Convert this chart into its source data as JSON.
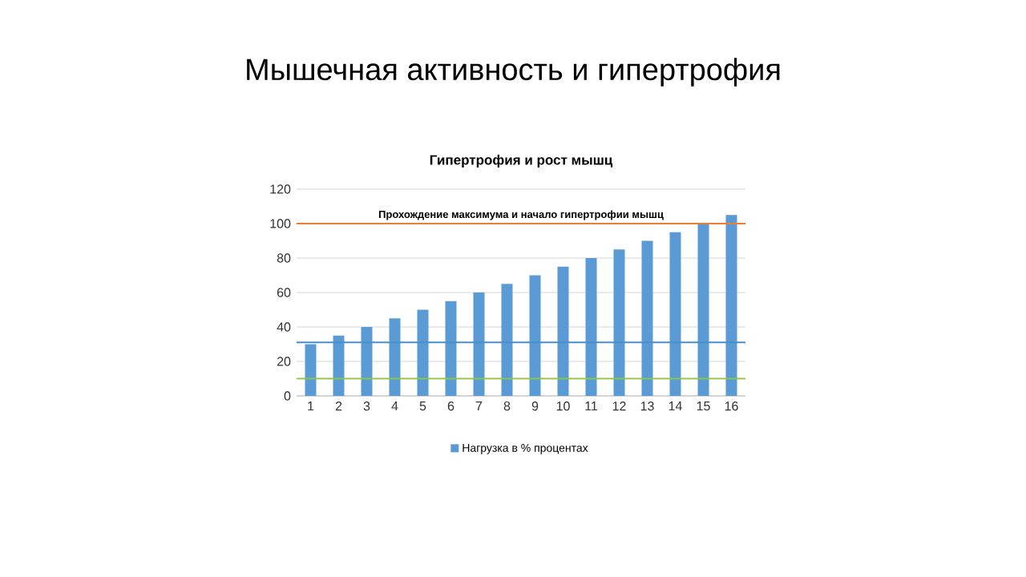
{
  "chart_data": {
    "type": "bar",
    "title": "Мышечная активность и гипертрофия",
    "subtitle": "Гипертрофия и рост мышц",
    "categories": [
      "1",
      "2",
      "3",
      "4",
      "5",
      "6",
      "7",
      "8",
      "9",
      "10",
      "11",
      "12",
      "13",
      "14",
      "15",
      "16"
    ],
    "series": [
      {
        "name": "Нагрузка в % процентах",
        "color": "#5b9bd5",
        "values": [
          30,
          35,
          40,
          45,
          50,
          55,
          60,
          65,
          70,
          75,
          80,
          85,
          90,
          95,
          100,
          105
        ]
      }
    ],
    "ylim": [
      0,
      120
    ],
    "yticks": [
      0,
      20,
      40,
      60,
      80,
      100,
      120
    ],
    "grid": "y",
    "legend": "bottom",
    "ref_lines": [
      {
        "axis": "y",
        "value": 100,
        "label": "Прохождение максимума и начало гипертрофии мышц",
        "color": "#ed7d31"
      },
      {
        "axis": "y",
        "value": 31,
        "color": "#4a8fc9"
      },
      {
        "axis": "y",
        "value": 10,
        "color": "#8dc63f"
      }
    ]
  }
}
